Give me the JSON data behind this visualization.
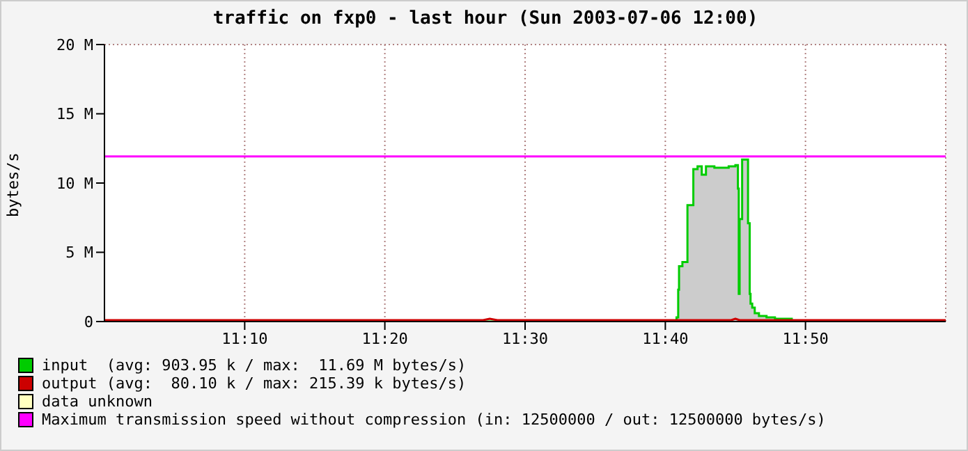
{
  "chart_data": {
    "type": "area",
    "title": "traffic on fxp0 - last hour (Sun 2003-07-06 12:00)",
    "ylabel": "bytes/s",
    "xlim": [
      11,
      12
    ],
    "xticks": [
      {
        "value": 11.1667,
        "label": "11:10"
      },
      {
        "value": 11.3333,
        "label": "11:20"
      },
      {
        "value": 11.5,
        "label": "11:30"
      },
      {
        "value": 11.6667,
        "label": "11:40"
      },
      {
        "value": 11.8333,
        "label": "11:50"
      }
    ],
    "ylim": [
      0,
      20
    ],
    "yticks": [
      0,
      {
        "value": 5,
        "label": "5 M"
      },
      {
        "value": 10,
        "label": "10 M"
      },
      {
        "value": 15,
        "label": "15 M"
      },
      {
        "value": 20,
        "label": "20 M"
      }
    ],
    "grid": true,
    "legend": "bottom",
    "series": [
      {
        "name": "input  (avg: 903.95 k / max:  11.69 M bytes/s)",
        "color": "#00cc00",
        "x": [
          11,
          11.167,
          11.333,
          11.5,
          11.677,
          11.68,
          11.682,
          11.683,
          11.687,
          11.69,
          11.693,
          11.695,
          11.7,
          11.705,
          11.71,
          11.715,
          11.725,
          11.742,
          11.75,
          11.753,
          11.754,
          11.755,
          11.758,
          11.763,
          11.765,
          11.767,
          11.768,
          11.77,
          11.773,
          11.778,
          11.787,
          11.797,
          11.813,
          11.817,
          11.833,
          12
        ],
        "values": [
          0,
          0,
          0,
          0,
          0,
          0.3,
          2.3,
          4.0,
          4.3,
          4.3,
          8.4,
          8.4,
          11.0,
          11.2,
          10.6,
          11.2,
          11.1,
          11.2,
          11.3,
          9.6,
          2.0,
          7.4,
          11.69,
          11.69,
          7.1,
          2.0,
          1.3,
          1.0,
          0.6,
          0.4,
          0.3,
          0.2,
          0.2,
          0,
          0,
          0
        ]
      },
      {
        "name": "output (avg:  80.10 k / max: 215.39 k bytes/s)",
        "type": "line",
        "color": "#cc0000",
        "x": [
          11,
          11.2,
          11.45,
          11.458,
          11.467,
          11.6,
          11.745,
          11.75,
          11.755,
          11.8,
          12
        ],
        "values": [
          0.1,
          0.1,
          0.1,
          0.2,
          0.1,
          0.1,
          0.1,
          0.2,
          0.1,
          0.1,
          0.1
        ]
      },
      {
        "name": "data unknown",
        "type": "area",
        "color": "#ffffc0"
      },
      {
        "name": "Maximum transmission speed without compression (in: 12500000 / out: 12500000 bytes/s)",
        "type": "line",
        "color": "#ff00ff",
        "x": [
          11,
          12
        ],
        "values": [
          11.92,
          11.92
        ]
      }
    ]
  }
}
